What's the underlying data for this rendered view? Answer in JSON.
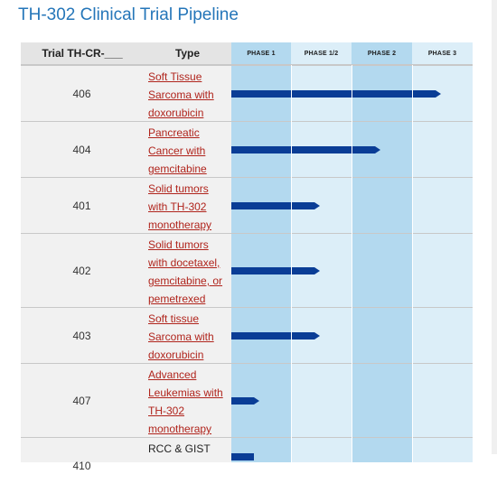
{
  "title": "TH-302 Clinical Trial Pipeline",
  "headers": {
    "trial": "Trial TH-CR-___",
    "type": "Type",
    "phase1": "PHASE 1",
    "phase12": "PHASE 1/2",
    "phase2": "PHASE 2",
    "phase3": "PHASE 3"
  },
  "colors": {
    "bar": "#0a3d96",
    "link": "#b0241c",
    "phase_dark": "#b3d9ef",
    "phase_light": "#dceef8",
    "title": "#2576b9"
  },
  "trials": [
    {
      "id": "406",
      "type_lines": [
        "Soft Tissue",
        "Sarcoma with",
        "doxorubicin"
      ],
      "progress_phase": 3.5
    },
    {
      "id": "404",
      "type_lines": [
        "Pancreatic",
        "Cancer with",
        "gemcitabine"
      ],
      "progress_phase": 2.5
    },
    {
      "id": "401",
      "type_lines": [
        "Solid tumors",
        "with TH-302",
        "monotherapy"
      ],
      "progress_phase": 1.5
    },
    {
      "id": "402",
      "type_lines": [
        "Solid tumors",
        "with docetaxel,",
        "gemcitabine, or",
        "pemetrexed"
      ],
      "progress_phase": 1.5
    },
    {
      "id": "403",
      "type_lines": [
        "Soft tissue",
        "Sarcoma with",
        "doxorubicin"
      ],
      "progress_phase": 1.5
    },
    {
      "id": "407",
      "type_lines": [
        "Advanced",
        "Leukemias with",
        "TH-302",
        "monotherapy"
      ],
      "progress_phase": 0.5
    },
    {
      "id": "410",
      "type_lines": [
        "RCC & GIST"
      ],
      "progress_phase": 0.5
    }
  ]
}
